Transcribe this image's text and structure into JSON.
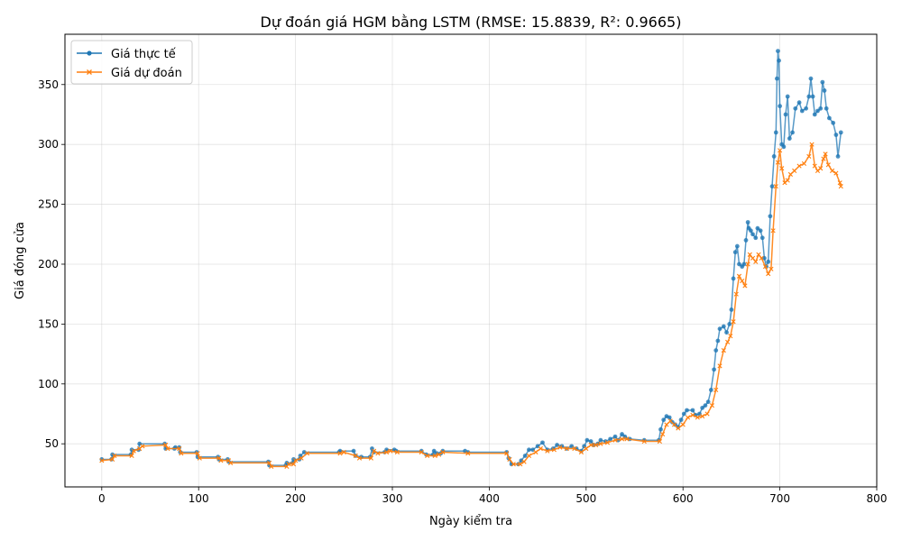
{
  "chart_data": {
    "type": "line",
    "title": "Dự đoán giá HGM bằng LSTM (RMSE: 15.8839, R²: 0.9665)",
    "xlabel": "Ngày kiểm tra",
    "ylabel": "Giá đóng cửa",
    "xlim": [
      -38,
      800
    ],
    "ylim": [
      14,
      392
    ],
    "xticks": [
      0,
      100,
      200,
      300,
      400,
      500,
      600,
      700,
      800
    ],
    "yticks": [
      50,
      100,
      150,
      200,
      250,
      300,
      350
    ],
    "grid": true,
    "legend_position": "top-left",
    "series": [
      {
        "name": "Giá thực tế",
        "color": "#1f77b4",
        "marker": "circle",
        "points": [
          [
            0,
            37
          ],
          [
            10,
            37
          ],
          [
            11,
            41
          ],
          [
            30,
            41
          ],
          [
            31,
            45
          ],
          [
            38,
            45
          ],
          [
            39,
            50
          ],
          [
            65,
            50
          ],
          [
            66,
            46
          ],
          [
            75,
            46
          ],
          [
            76,
            47
          ],
          [
            80,
            47
          ],
          [
            81,
            43
          ],
          [
            98,
            43
          ],
          [
            99,
            39
          ],
          [
            120,
            39
          ],
          [
            121,
            37
          ],
          [
            130,
            37
          ],
          [
            131,
            35
          ],
          [
            172,
            35
          ],
          [
            173,
            32
          ],
          [
            190,
            32
          ],
          [
            191,
            34
          ],
          [
            197,
            34
          ],
          [
            198,
            37
          ],
          [
            204,
            37
          ],
          [
            205,
            40
          ],
          [
            209,
            43
          ],
          [
            245,
            43
          ],
          [
            246,
            44
          ],
          [
            260,
            44
          ],
          [
            262,
            40
          ],
          [
            268,
            39
          ],
          [
            277,
            39
          ],
          [
            279,
            46
          ],
          [
            281,
            43
          ],
          [
            292,
            43
          ],
          [
            294,
            45
          ],
          [
            302,
            45
          ],
          [
            304,
            44
          ],
          [
            330,
            44
          ],
          [
            335,
            41
          ],
          [
            342,
            41
          ],
          [
            343,
            44
          ],
          [
            346,
            42
          ],
          [
            350,
            42
          ],
          [
            352,
            44
          ],
          [
            375,
            44
          ],
          [
            378,
            43
          ],
          [
            418,
            43
          ],
          [
            420,
            38
          ],
          [
            423,
            33
          ],
          [
            430,
            33
          ],
          [
            433,
            36
          ],
          [
            437,
            40
          ],
          [
            441,
            45
          ],
          [
            445,
            45
          ],
          [
            450,
            48
          ],
          [
            455,
            51
          ],
          [
            460,
            45
          ],
          [
            466,
            46
          ],
          [
            470,
            49
          ],
          [
            475,
            48
          ],
          [
            480,
            46
          ],
          [
            485,
            48
          ],
          [
            490,
            46
          ],
          [
            495,
            44
          ],
          [
            498,
            48
          ],
          [
            501,
            53
          ],
          [
            505,
            52
          ],
          [
            508,
            49
          ],
          [
            512,
            50
          ],
          [
            515,
            53
          ],
          [
            520,
            52
          ],
          [
            525,
            54
          ],
          [
            530,
            56
          ],
          [
            533,
            53
          ],
          [
            537,
            58
          ],
          [
            540,
            56
          ],
          [
            545,
            54
          ],
          [
            560,
            53
          ],
          [
            575,
            53
          ],
          [
            577,
            62
          ],
          [
            580,
            70
          ],
          [
            583,
            73
          ],
          [
            586,
            72
          ],
          [
            589,
            68
          ],
          [
            592,
            66
          ],
          [
            595,
            64
          ],
          [
            598,
            70
          ],
          [
            601,
            75
          ],
          [
            604,
            78
          ],
          [
            610,
            78
          ],
          [
            613,
            74
          ],
          [
            617,
            75
          ],
          [
            620,
            80
          ],
          [
            623,
            82
          ],
          [
            626,
            85
          ],
          [
            629,
            95
          ],
          [
            632,
            112
          ],
          [
            634,
            128
          ],
          [
            636,
            136
          ],
          [
            638,
            146
          ],
          [
            642,
            148
          ],
          [
            645,
            143
          ],
          [
            648,
            150
          ],
          [
            650,
            162
          ],
          [
            652,
            188
          ],
          [
            654,
            210
          ],
          [
            656,
            215
          ],
          [
            658,
            200
          ],
          [
            661,
            198
          ],
          [
            663,
            200
          ],
          [
            665,
            220
          ],
          [
            667,
            235
          ],
          [
            668,
            230
          ],
          [
            670,
            228
          ],
          [
            672,
            225
          ],
          [
            675,
            222
          ],
          [
            677,
            230
          ],
          [
            680,
            228
          ],
          [
            682,
            222
          ],
          [
            684,
            205
          ],
          [
            686,
            198
          ],
          [
            688,
            202
          ],
          [
            690,
            240
          ],
          [
            692,
            265
          ],
          [
            694,
            290
          ],
          [
            696,
            310
          ],
          [
            697,
            355
          ],
          [
            698,
            378
          ],
          [
            699,
            370
          ],
          [
            700,
            332
          ],
          [
            702,
            300
          ],
          [
            704,
            298
          ],
          [
            706,
            325
          ],
          [
            708,
            340
          ],
          [
            710,
            305
          ],
          [
            713,
            310
          ],
          [
            716,
            330
          ],
          [
            720,
            335
          ],
          [
            723,
            328
          ],
          [
            727,
            330
          ],
          [
            730,
            340
          ],
          [
            732,
            355
          ],
          [
            734,
            340
          ],
          [
            736,
            325
          ],
          [
            739,
            328
          ],
          [
            742,
            330
          ],
          [
            744,
            352
          ],
          [
            746,
            345
          ],
          [
            748,
            330
          ],
          [
            751,
            322
          ],
          [
            755,
            318
          ],
          [
            758,
            308
          ],
          [
            760,
            290
          ],
          [
            763,
            310
          ]
        ]
      },
      {
        "name": "Giá dự đoán",
        "color": "#ff7f0e",
        "marker": "x",
        "points": [
          [
            0,
            36
          ],
          [
            11,
            37
          ],
          [
            13,
            40
          ],
          [
            31,
            40
          ],
          [
            33,
            44
          ],
          [
            39,
            46
          ],
          [
            42,
            48
          ],
          [
            66,
            49
          ],
          [
            68,
            46
          ],
          [
            80,
            46
          ],
          [
            82,
            42
          ],
          [
            99,
            42
          ],
          [
            101,
            38
          ],
          [
            121,
            38
          ],
          [
            123,
            36
          ],
          [
            131,
            36
          ],
          [
            133,
            34
          ],
          [
            173,
            34
          ],
          [
            175,
            31
          ],
          [
            191,
            31
          ],
          [
            193,
            33
          ],
          [
            198,
            33
          ],
          [
            200,
            36
          ],
          [
            206,
            38
          ],
          [
            212,
            42
          ],
          [
            246,
            42
          ],
          [
            250,
            43
          ],
          [
            262,
            40
          ],
          [
            266,
            38
          ],
          [
            278,
            38
          ],
          [
            281,
            44
          ],
          [
            285,
            42
          ],
          [
            294,
            43
          ],
          [
            298,
            44
          ],
          [
            305,
            43
          ],
          [
            330,
            43
          ],
          [
            336,
            40
          ],
          [
            344,
            40
          ],
          [
            348,
            41
          ],
          [
            352,
            43
          ],
          [
            378,
            42
          ],
          [
            418,
            42
          ],
          [
            421,
            37
          ],
          [
            425,
            33
          ],
          [
            432,
            33
          ],
          [
            436,
            35
          ],
          [
            441,
            40
          ],
          [
            448,
            43
          ],
          [
            453,
            46
          ],
          [
            460,
            44
          ],
          [
            467,
            45
          ],
          [
            473,
            47
          ],
          [
            480,
            46
          ],
          [
            488,
            46
          ],
          [
            495,
            43
          ],
          [
            500,
            46
          ],
          [
            505,
            49
          ],
          [
            510,
            49
          ],
          [
            515,
            50
          ],
          [
            522,
            51
          ],
          [
            530,
            53
          ],
          [
            537,
            54
          ],
          [
            542,
            54
          ],
          [
            560,
            52
          ],
          [
            576,
            52
          ],
          [
            579,
            58
          ],
          [
            583,
            66
          ],
          [
            587,
            69
          ],
          [
            591,
            66
          ],
          [
            595,
            63
          ],
          [
            600,
            66
          ],
          [
            605,
            72
          ],
          [
            610,
            74
          ],
          [
            615,
            72
          ],
          [
            620,
            73
          ],
          [
            625,
            75
          ],
          [
            630,
            82
          ],
          [
            634,
            95
          ],
          [
            638,
            115
          ],
          [
            642,
            128
          ],
          [
            646,
            135
          ],
          [
            649,
            140
          ],
          [
            652,
            152
          ],
          [
            655,
            175
          ],
          [
            658,
            190
          ],
          [
            661,
            186
          ],
          [
            664,
            182
          ],
          [
            667,
            200
          ],
          [
            669,
            208
          ],
          [
            672,
            205
          ],
          [
            675,
            202
          ],
          [
            678,
            208
          ],
          [
            681,
            205
          ],
          [
            685,
            198
          ],
          [
            688,
            192
          ],
          [
            691,
            196
          ],
          [
            693,
            228
          ],
          [
            696,
            265
          ],
          [
            698,
            285
          ],
          [
            700,
            295
          ],
          [
            702,
            280
          ],
          [
            705,
            268
          ],
          [
            708,
            270
          ],
          [
            711,
            275
          ],
          [
            715,
            278
          ],
          [
            720,
            282
          ],
          [
            725,
            284
          ],
          [
            730,
            290
          ],
          [
            733,
            300
          ],
          [
            736,
            282
          ],
          [
            739,
            278
          ],
          [
            742,
            280
          ],
          [
            745,
            288
          ],
          [
            747,
            292
          ],
          [
            750,
            283
          ],
          [
            754,
            278
          ],
          [
            758,
            276
          ],
          [
            762,
            268
          ],
          [
            763,
            265
          ]
        ]
      }
    ]
  }
}
